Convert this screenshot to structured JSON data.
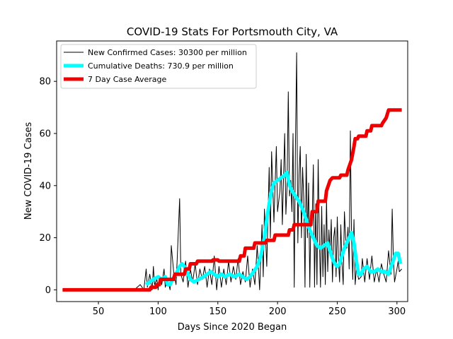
{
  "chart_data": {
    "type": "line",
    "title": "COVID-19 Stats For Portsmouth City, VA",
    "xlabel": "Days Since 2020 Began",
    "ylabel": "New COVID-19 Cases",
    "xlim": [
      15,
      309
    ],
    "ylim": [
      -4.5,
      95.5
    ],
    "xticks": [
      50,
      100,
      150,
      200,
      250,
      300
    ],
    "yticks": [
      0,
      20,
      40,
      60,
      80
    ],
    "legend_position": "top-left",
    "series": [
      {
        "name": "New Confirmed Cases: 30300 per million",
        "color": "#000000",
        "points": [
          [
            20,
            0
          ],
          [
            40,
            0
          ],
          [
            60,
            0
          ],
          [
            75,
            0
          ],
          [
            80,
            0
          ],
          [
            85,
            2
          ],
          [
            88,
            0
          ],
          [
            90,
            8
          ],
          [
            91,
            1
          ],
          [
            93,
            6
          ],
          [
            95,
            0
          ],
          [
            96,
            9
          ],
          [
            97,
            2
          ],
          [
            99,
            4
          ],
          [
            100,
            0
          ],
          [
            101,
            5
          ],
          [
            103,
            2
          ],
          [
            105,
            8
          ],
          [
            106,
            1
          ],
          [
            108,
            4
          ],
          [
            110,
            0
          ],
          [
            111,
            17
          ],
          [
            113,
            7
          ],
          [
            115,
            2
          ],
          [
            116,
            12
          ],
          [
            118,
            35
          ],
          [
            119,
            6
          ],
          [
            121,
            3
          ],
          [
            123,
            11
          ],
          [
            125,
            1
          ],
          [
            127,
            8
          ],
          [
            129,
            3
          ],
          [
            131,
            10
          ],
          [
            133,
            2
          ],
          [
            135,
            8
          ],
          [
            137,
            4
          ],
          [
            139,
            9
          ],
          [
            141,
            1
          ],
          [
            143,
            8
          ],
          [
            145,
            2
          ],
          [
            147,
            13
          ],
          [
            149,
            0
          ],
          [
            151,
            9
          ],
          [
            153,
            1
          ],
          [
            155,
            8
          ],
          [
            157,
            2
          ],
          [
            159,
            11
          ],
          [
            161,
            3
          ],
          [
            163,
            9
          ],
          [
            165,
            4
          ],
          [
            167,
            12
          ],
          [
            169,
            2
          ],
          [
            171,
            7
          ],
          [
            173,
            3
          ],
          [
            175,
            13
          ],
          [
            177,
            1
          ],
          [
            179,
            8
          ],
          [
            181,
            2
          ],
          [
            183,
            17
          ],
          [
            185,
            0
          ],
          [
            187,
            25
          ],
          [
            188,
            5
          ],
          [
            189,
            31
          ],
          [
            191,
            9
          ],
          [
            193,
            47
          ],
          [
            194,
            20
          ],
          [
            195,
            53
          ],
          [
            196,
            40
          ],
          [
            197,
            26
          ],
          [
            199,
            55
          ],
          [
            200,
            30
          ],
          [
            202,
            38
          ],
          [
            203,
            50
          ],
          [
            204,
            25
          ],
          [
            206,
            60
          ],
          [
            207,
            29
          ],
          [
            208,
            40
          ],
          [
            209,
            76
          ],
          [
            210,
            36
          ],
          [
            211,
            42
          ],
          [
            212,
            30
          ],
          [
            213,
            60
          ],
          [
            214,
            1
          ],
          [
            215,
            55
          ],
          [
            216,
            91
          ],
          [
            217,
            18
          ],
          [
            218,
            44
          ],
          [
            219,
            55
          ],
          [
            220,
            20
          ],
          [
            221,
            47
          ],
          [
            222,
            35
          ],
          [
            223,
            1
          ],
          [
            224,
            52
          ],
          [
            225,
            20
          ],
          [
            226,
            41
          ],
          [
            227,
            1
          ],
          [
            228,
            30
          ],
          [
            229,
            26
          ],
          [
            230,
            48
          ],
          [
            231,
            1
          ],
          [
            232,
            33
          ],
          [
            233,
            2
          ],
          [
            234,
            50
          ],
          [
            235,
            19
          ],
          [
            236,
            1
          ],
          [
            237,
            32
          ],
          [
            238,
            5
          ],
          [
            239,
            25
          ],
          [
            240,
            2
          ],
          [
            241,
            35
          ],
          [
            242,
            7
          ],
          [
            243,
            23
          ],
          [
            244,
            13
          ],
          [
            245,
            27
          ],
          [
            246,
            3
          ],
          [
            247,
            20
          ],
          [
            248,
            24
          ],
          [
            249,
            5
          ],
          [
            250,
            28
          ],
          [
            251,
            12
          ],
          [
            252,
            3
          ],
          [
            253,
            25
          ],
          [
            254,
            10
          ],
          [
            255,
            2
          ],
          [
            256,
            30
          ],
          [
            257,
            20
          ],
          [
            258,
            16
          ],
          [
            259,
            24
          ],
          [
            260,
            8
          ],
          [
            261,
            61
          ],
          [
            262,
            20
          ],
          [
            263,
            4
          ],
          [
            264,
            27
          ],
          [
            265,
            2
          ],
          [
            266,
            8
          ],
          [
            268,
            4
          ],
          [
            270,
            5
          ],
          [
            271,
            12
          ],
          [
            273,
            3
          ],
          [
            275,
            12
          ],
          [
            277,
            4
          ],
          [
            279,
            13
          ],
          [
            281,
            3
          ],
          [
            283,
            8
          ],
          [
            285,
            3
          ],
          [
            287,
            10
          ],
          [
            289,
            6
          ],
          [
            291,
            3
          ],
          [
            293,
            15
          ],
          [
            295,
            6
          ],
          [
            296,
            31
          ],
          [
            297,
            12
          ],
          [
            298,
            3
          ],
          [
            300,
            8
          ],
          [
            301,
            11
          ],
          [
            302,
            7
          ],
          [
            304,
            8
          ]
        ]
      },
      {
        "name": "Cumulative Deaths: 730.9 per million",
        "color": "#00ffff",
        "points": [
          [
            90,
            2
          ],
          [
            93,
            3
          ],
          [
            96,
            4
          ],
          [
            100,
            5
          ],
          [
            103,
            4
          ],
          [
            106,
            5
          ],
          [
            108,
            2
          ],
          [
            110,
            2
          ],
          [
            112,
            4
          ],
          [
            115,
            6
          ],
          [
            118,
            9
          ],
          [
            120,
            10
          ],
          [
            122,
            9
          ],
          [
            124,
            7
          ],
          [
            127,
            4
          ],
          [
            130,
            3
          ],
          [
            134,
            4
          ],
          [
            138,
            5
          ],
          [
            141,
            6
          ],
          [
            144,
            7
          ],
          [
            147,
            6
          ],
          [
            150,
            5
          ],
          [
            153,
            6
          ],
          [
            156,
            5
          ],
          [
            160,
            6
          ],
          [
            164,
            5
          ],
          [
            168,
            6
          ],
          [
            171,
            5
          ],
          [
            174,
            4
          ],
          [
            177,
            5
          ],
          [
            180,
            7
          ],
          [
            183,
            9
          ],
          [
            186,
            13
          ],
          [
            189,
            20
          ],
          [
            191,
            27
          ],
          [
            193,
            33
          ],
          [
            195,
            38
          ],
          [
            197,
            41
          ],
          [
            200,
            42
          ],
          [
            203,
            43
          ],
          [
            206,
            44
          ],
          [
            208,
            45
          ],
          [
            210,
            40
          ],
          [
            212,
            38
          ],
          [
            215,
            36
          ],
          [
            218,
            34
          ],
          [
            221,
            31
          ],
          [
            224,
            27
          ],
          [
            227,
            23
          ],
          [
            230,
            20
          ],
          [
            233,
            17
          ],
          [
            236,
            16
          ],
          [
            239,
            17
          ],
          [
            242,
            18
          ],
          [
            244,
            15
          ],
          [
            246,
            12
          ],
          [
            248,
            10
          ],
          [
            250,
            9
          ],
          [
            252,
            10
          ],
          [
            254,
            13
          ],
          [
            256,
            16
          ],
          [
            258,
            18
          ],
          [
            260,
            20
          ],
          [
            262,
            22
          ],
          [
            264,
            18
          ],
          [
            266,
            11
          ],
          [
            268,
            6
          ],
          [
            270,
            6
          ],
          [
            272,
            8
          ],
          [
            275,
            9
          ],
          [
            278,
            7
          ],
          [
            281,
            7
          ],
          [
            284,
            8
          ],
          [
            287,
            7
          ],
          [
            290,
            7
          ],
          [
            293,
            6
          ],
          [
            296,
            10
          ],
          [
            299,
            14
          ],
          [
            301,
            14
          ],
          [
            303,
            10
          ]
        ]
      },
      {
        "name": "7 Day Case Average",
        "color": "#ee0000",
        "points": [
          [
            20,
            0
          ],
          [
            93,
            0
          ],
          [
            94,
            1
          ],
          [
            98,
            1
          ],
          [
            99,
            2
          ],
          [
            101,
            2
          ],
          [
            102,
            4
          ],
          [
            113,
            4
          ],
          [
            114,
            6
          ],
          [
            122,
            6
          ],
          [
            123,
            8
          ],
          [
            126,
            8
          ],
          [
            127,
            10
          ],
          [
            132,
            10
          ],
          [
            133,
            11
          ],
          [
            145,
            11
          ],
          [
            146,
            11.5
          ],
          [
            150,
            11.5
          ],
          [
            151,
            11
          ],
          [
            168,
            11
          ],
          [
            169,
            13
          ],
          [
            172,
            13
          ],
          [
            173,
            16
          ],
          [
            180,
            16
          ],
          [
            181,
            18
          ],
          [
            190,
            18
          ],
          [
            191,
            19
          ],
          [
            197,
            19
          ],
          [
            198,
            21
          ],
          [
            209,
            21
          ],
          [
            210,
            23
          ],
          [
            213,
            23
          ],
          [
            214,
            25
          ],
          [
            228,
            25
          ],
          [
            229,
            30
          ],
          [
            233,
            30
          ],
          [
            234,
            34
          ],
          [
            240,
            34
          ],
          [
            241,
            38
          ],
          [
            244,
            42
          ],
          [
            246,
            43
          ],
          [
            252,
            43
          ],
          [
            253,
            44
          ],
          [
            258,
            44
          ],
          [
            259,
            46
          ],
          [
            262,
            50
          ],
          [
            264,
            55
          ],
          [
            265,
            58
          ],
          [
            267,
            58
          ],
          [
            268,
            59
          ],
          [
            274,
            59
          ],
          [
            275,
            61
          ],
          [
            278,
            61
          ],
          [
            279,
            63
          ],
          [
            287,
            63
          ],
          [
            288,
            64
          ],
          [
            291,
            66
          ],
          [
            293,
            69
          ],
          [
            304,
            69
          ]
        ]
      }
    ]
  }
}
